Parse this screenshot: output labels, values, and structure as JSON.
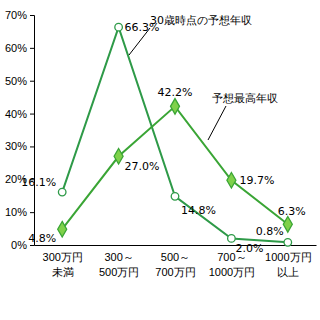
{
  "chart_data": {
    "type": "line",
    "categories": [
      "300万円\n未満",
      "300～\n500万円",
      "500～\n700万円",
      "700～\n1000万円",
      "1000万円\n以上"
    ],
    "series": [
      {
        "name": "30歳時点の予想年収",
        "color": "#2e9a48",
        "marker": "circle",
        "values": [
          16.1,
          66.3,
          14.8,
          2.0,
          0.8
        ],
        "value_labels": [
          "16.1%",
          "66.3%",
          "14.8%",
          "2.0%",
          "0.8%"
        ]
      },
      {
        "name": "予想最高年収",
        "color": "#3aa535",
        "marker": "diamond",
        "values": [
          4.8,
          27.0,
          42.2,
          19.7,
          6.3
        ],
        "value_labels": [
          "4.8%",
          "27.0%",
          "42.2%",
          "19.7%",
          "6.3%"
        ]
      }
    ],
    "ylim": [
      0,
      70
    ],
    "yticks": [
      {
        "value": 0,
        "label": "0%"
      },
      {
        "value": 10,
        "label": "10%"
      },
      {
        "value": 20,
        "label": "20%"
      },
      {
        "value": 30,
        "label": "30%"
      },
      {
        "value": 40,
        "label": "40%"
      },
      {
        "value": 50,
        "label": "50%"
      },
      {
        "value": 60,
        "label": "60%"
      },
      {
        "value": 70,
        "label": "70%"
      }
    ],
    "grid": false,
    "data_labels": true
  }
}
